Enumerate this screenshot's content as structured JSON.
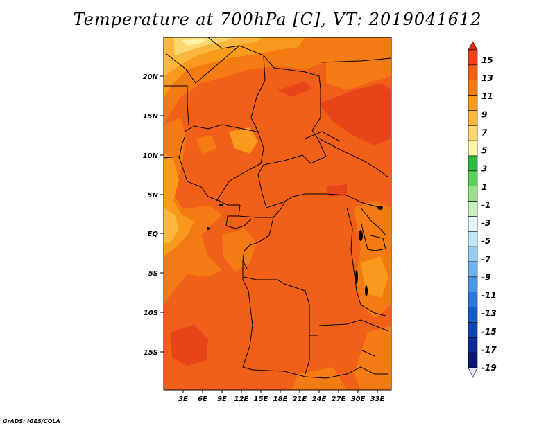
{
  "title": "Temperature at 700hPa [C], VT: 2019041612",
  "credit": "GrADS: IGES/COLA",
  "map": {
    "lat_labels": [
      "20N",
      "15N",
      "10N",
      "5N",
      "EQ",
      "5S",
      "10S",
      "15S"
    ],
    "lon_labels": [
      "3E",
      "6E",
      "9E",
      "12E",
      "15E",
      "18E",
      "21E",
      "24E",
      "27E",
      "30E",
      "33E"
    ]
  },
  "colorbar": {
    "levels": [
      {
        "label": "15",
        "color": "#e8451a"
      },
      {
        "label": "13",
        "color": "#f06018"
      },
      {
        "label": "11",
        "color": "#f47b14"
      },
      {
        "label": "9",
        "color": "#f89a1c"
      },
      {
        "label": "7",
        "color": "#fbb63c"
      },
      {
        "label": "5",
        "color": "#fcd772"
      },
      {
        "label": "3",
        "color": "#fef3a8"
      },
      {
        "label": "1",
        "color": "#2fb844"
      },
      {
        "label": "-1",
        "color": "#5cd05a"
      },
      {
        "label": "-3",
        "color": "#9ae08c"
      },
      {
        "label": "-5",
        "color": "#c6f0be"
      },
      {
        "label": "-7",
        "color": "#e4f6f6"
      },
      {
        "label": "-9",
        "color": "#bee6f8"
      },
      {
        "label": "-11",
        "color": "#94ccf2"
      },
      {
        "label": "-13",
        "color": "#6cb2ec"
      },
      {
        "label": "-15",
        "color": "#4a96e6"
      },
      {
        "label": "-17",
        "color": "#2c78d8"
      },
      {
        "label": "-19",
        "color": "#155cc6"
      }
    ],
    "extra_colors": [
      "#0c44b0",
      "#0a2c94",
      "#0a1870"
    ],
    "top_arrow_color": "#e02a16",
    "bottom_arrow_color": "#e6e6f8"
  }
}
